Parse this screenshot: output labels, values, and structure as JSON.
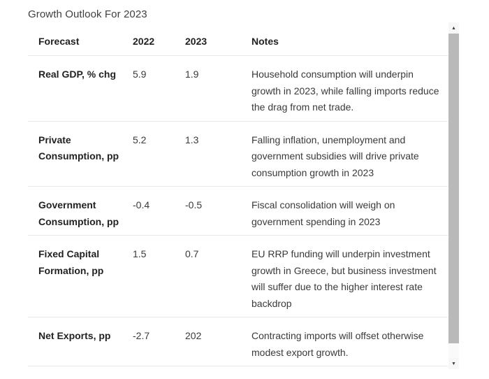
{
  "page": {
    "title": "Growth Outlook For 2023"
  },
  "table": {
    "headers": {
      "forecast": "Forecast",
      "y2022": "2022",
      "y2023": "2023",
      "notes": "Notes"
    },
    "rows": [
      {
        "forecast": "Real GDP, % chg",
        "y2022": "5.9",
        "y2023": "1.9",
        "notes": "Household consumption will underpin growth in 2023, while falling imports reduce the drag from net trade."
      },
      {
        "forecast": "Private Consumption, pp",
        "y2022": "5.2",
        "y2023": "1.3",
        "notes": "Falling inflation, unemployment and government subsidies will drive private consumption growth in 2023"
      },
      {
        "forecast": "Government Consumption, pp",
        "y2022": "-0.4",
        "y2023": "-0.5",
        "notes": "Fiscal consolidation will weigh on government spending in 2023"
      },
      {
        "forecast": "Fixed Capital Formation, pp",
        "y2022": "1.5",
        "y2023": "0.7",
        "notes": "EU RRP funding will underpin investment growth in Greece, but business investment will suffer due to the higher interest rate backdrop"
      },
      {
        "forecast": "Net Exports, pp",
        "y2022": "-2.7",
        "y2023": "202",
        "notes": "Contracting imports will offset otherwise modest export growth."
      }
    ]
  },
  "scrollbar": {
    "up_icon": "▲",
    "down_icon": "▼"
  },
  "colors": {
    "text": "#333333",
    "header_text": "#222222",
    "divider": "#e9e9e9",
    "scrollbar_thumb": "#b9b9b9",
    "scrollbar_button_bg": "#f7f7f7"
  }
}
